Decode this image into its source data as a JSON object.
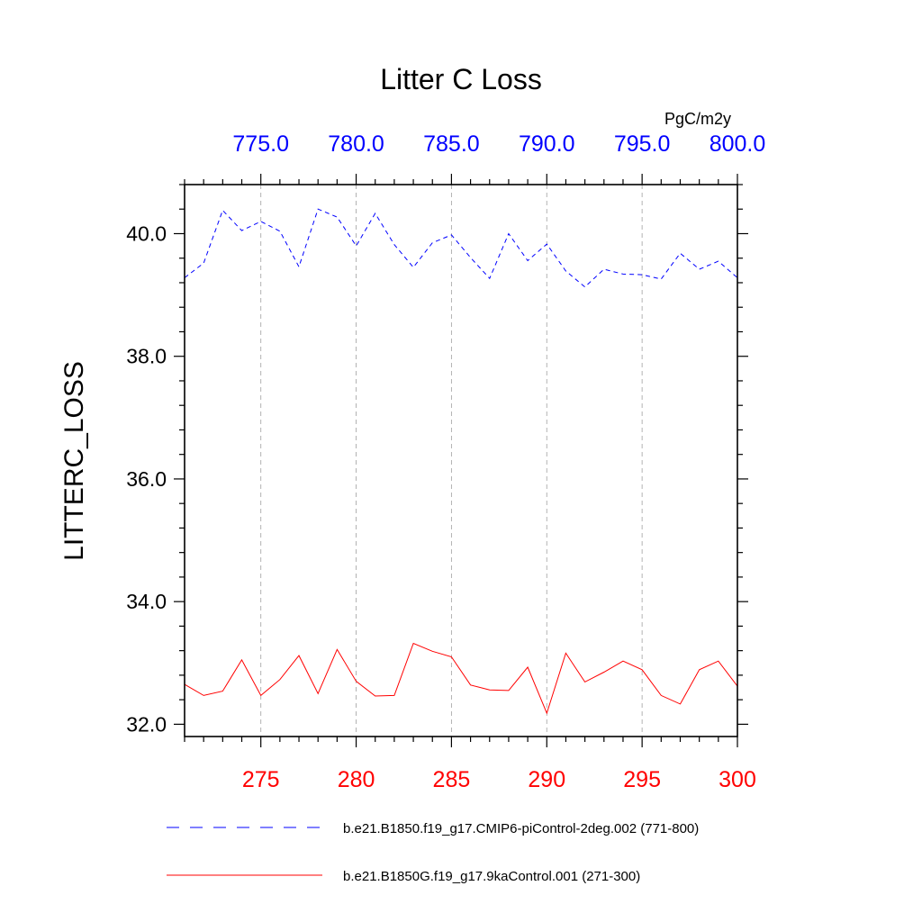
{
  "chart_data": {
    "type": "line",
    "title": "Litter C Loss",
    "units": "PgC/m2y",
    "ylabel": "LITTERC_LOSS",
    "xlabel": "",
    "ylim": [
      31.8,
      40.8
    ],
    "yticks": [
      32.0,
      34.0,
      36.0,
      38.0,
      40.0
    ],
    "ytick_labels": [
      "32.0",
      "34.0",
      "36.0",
      "38.0",
      "40.0"
    ],
    "grid": "vertical dashed at labeled x ticks",
    "legend_position": "bottom",
    "x_bottom": {
      "range": [
        271,
        300
      ],
      "ticks": [
        275,
        280,
        285,
        290,
        295,
        300
      ],
      "tick_labels": [
        "275",
        "280",
        "285",
        "290",
        "295",
        "300"
      ],
      "color": "#ff0000"
    },
    "x_top": {
      "range": [
        771,
        800
      ],
      "ticks": [
        775,
        780,
        785,
        790,
        795,
        800
      ],
      "tick_labels": [
        "775.0",
        "780.0",
        "785.0",
        "790.0",
        "795.0",
        "800.0"
      ],
      "color": "#0000ff"
    },
    "series": [
      {
        "name": "b.e21.B1850.f19_g17.CMIP6-piControl-2deg.002 (771-800)",
        "axis": "top",
        "color": "#0000ff",
        "style": "dashed",
        "x": [
          771,
          772,
          773,
          774,
          775,
          776,
          777,
          778,
          779,
          780,
          781,
          782,
          783,
          784,
          785,
          786,
          787,
          788,
          789,
          790,
          791,
          792,
          793,
          794,
          795,
          796,
          797,
          798,
          799,
          800
        ],
        "values": [
          39.28,
          39.52,
          40.38,
          40.05,
          40.2,
          40.04,
          39.46,
          40.4,
          40.27,
          39.8,
          40.33,
          39.82,
          39.45,
          39.85,
          39.98,
          39.61,
          39.27,
          40.0,
          39.56,
          39.83,
          39.39,
          39.13,
          39.42,
          39.34,
          39.33,
          39.26,
          39.68,
          39.42,
          39.55,
          39.28
        ]
      },
      {
        "name": "b.e21.B1850G.f19_g17.9kaControl.001 (271-300)",
        "axis": "bottom",
        "color": "#ff0000",
        "style": "solid",
        "x": [
          271,
          272,
          273,
          274,
          275,
          276,
          277,
          278,
          279,
          280,
          281,
          282,
          283,
          284,
          285,
          286,
          287,
          288,
          289,
          290,
          291,
          292,
          293,
          294,
          295,
          296,
          297,
          298,
          299,
          300
        ],
        "values": [
          32.65,
          32.47,
          32.54,
          33.05,
          32.47,
          32.73,
          33.12,
          32.5,
          33.22,
          32.7,
          32.46,
          32.47,
          33.32,
          33.19,
          33.1,
          32.64,
          32.56,
          32.55,
          32.93,
          32.18,
          33.16,
          32.69,
          32.85,
          33.03,
          32.89,
          32.47,
          32.33,
          32.89,
          33.03,
          32.62
        ]
      }
    ]
  }
}
